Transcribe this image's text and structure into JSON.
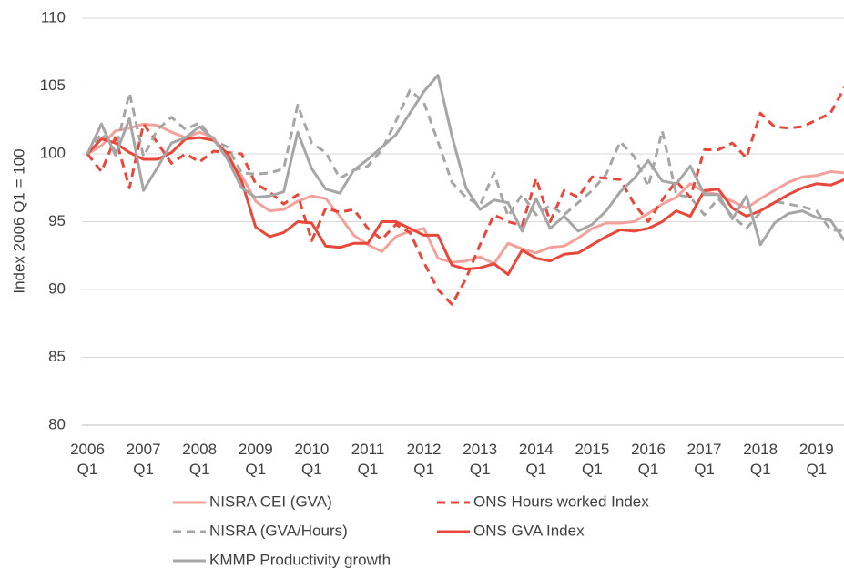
{
  "chart_data": {
    "type": "line",
    "y_label": "Index 2006 Q1 = 100",
    "categories": [
      "2006 Q1",
      null,
      null,
      null,
      "2007 Q1",
      null,
      null,
      null,
      "2008 Q1",
      null,
      null,
      null,
      "2009 Q1",
      null,
      null,
      null,
      "2010 Q1",
      null,
      null,
      null,
      "2011 Q1",
      null,
      null,
      null,
      "2012 Q1",
      null,
      null,
      null,
      "2013 Q1",
      null,
      null,
      null,
      "2014 Q1",
      null,
      null,
      null,
      "2015 Q1",
      null,
      null,
      null,
      "2016 Q1",
      null,
      null,
      null,
      "2017 Q1",
      null,
      null,
      null,
      "2018 Q1",
      null,
      null,
      null,
      "2019 Q1",
      null,
      null
    ],
    "ylim": [
      80,
      110
    ],
    "yticks": [
      80,
      85,
      90,
      95,
      100,
      105,
      110
    ],
    "grid": true,
    "series": [
      {
        "name": "NISRA CEI (GVA)",
        "color": "#f4a19b",
        "style": "solid",
        "values": [
          100,
          100.6,
          101.7,
          101.9,
          102.2,
          102.1,
          101.6,
          101.2,
          101.6,
          101.2,
          99.6,
          98.4,
          96.5,
          95.8,
          95.9,
          96.5,
          96.9,
          96.7,
          95.4,
          94.0,
          93.3,
          92.8,
          93.9,
          94.3,
          94.5,
          92.3,
          92.0,
          92.1,
          92.4,
          91.9,
          93.4,
          93.0,
          92.7,
          93.1,
          93.2,
          93.8,
          94.5,
          94.9,
          94.9,
          95.0,
          95.6,
          96.3,
          96.8,
          97.8,
          97.2,
          97.0,
          96.5,
          96.0,
          96.7,
          97.3,
          97.9,
          98.3,
          98.4,
          98.7,
          98.6
        ]
      },
      {
        "name": "ONS Hours worked Index",
        "color": "#e8473a",
        "style": "dashed",
        "values": [
          100,
          98.7,
          101.2,
          97.5,
          102.2,
          100.8,
          99.3,
          100.0,
          99.4,
          100.2,
          100.1,
          100.0,
          97.8,
          97.2,
          96.3,
          97.0,
          93.6,
          96.0,
          95.7,
          95.9,
          94.5,
          93.7,
          94.8,
          94.2,
          92.0,
          90.0,
          88.9,
          90.8,
          93.3,
          95.5,
          95.0,
          94.7,
          98.2,
          95.0,
          97.3,
          96.8,
          98.3,
          98.2,
          98.1,
          96.3,
          95.0,
          96.6,
          98.0,
          96.8,
          100.3,
          100.3,
          100.8,
          99.7,
          103.0,
          102.0,
          101.9,
          102.0,
          102.5,
          103.0,
          104.9
        ]
      },
      {
        "name": "NISRA (GVA/Hours)",
        "color": "#a6a6a6",
        "style": "dashed",
        "values": [
          100,
          101.5,
          100.2,
          104.5,
          99.8,
          101.8,
          102.7,
          101.8,
          102.3,
          101.0,
          100.5,
          98.6,
          98.5,
          98.6,
          98.9,
          103.6,
          100.8,
          100.1,
          98.2,
          98.8,
          99.1,
          100.3,
          102.4,
          104.7,
          103.8,
          100.9,
          97.9,
          96.8,
          96.2,
          98.6,
          95.4,
          97.0,
          95.5,
          96.2,
          95.5,
          96.4,
          97.3,
          98.5,
          100.9,
          99.8,
          97.6,
          101.7,
          97.0,
          96.8,
          95.5,
          96.7,
          95.4,
          94.5,
          95.7,
          96.5,
          96.3,
          96.1,
          95.8,
          94.4,
          94.3
        ]
      },
      {
        "name": "ONS GVA Index",
        "color": "#e8473a",
        "style": "solid",
        "values": [
          100,
          101.1,
          100.8,
          100.1,
          99.6,
          99.6,
          100.1,
          101.1,
          101.2,
          101.0,
          100.0,
          98.0,
          94.6,
          93.9,
          94.2,
          95.0,
          94.9,
          93.2,
          93.1,
          93.4,
          93.4,
          95.0,
          95.0,
          94.5,
          94.0,
          94.0,
          91.8,
          91.5,
          91.6,
          91.9,
          91.1,
          92.9,
          92.3,
          92.1,
          92.6,
          92.7,
          93.3,
          93.9,
          94.4,
          94.3,
          94.5,
          95.0,
          95.8,
          95.4,
          97.3,
          97.4,
          96.0,
          95.4,
          95.8,
          96.4,
          97.0,
          97.5,
          97.8,
          97.7,
          98.1
        ]
      },
      {
        "name": "KMMP Productivity growth",
        "color": "#a6a6a6",
        "style": "solid",
        "values": [
          100,
          102.2,
          99.9,
          102.6,
          97.3,
          99.0,
          100.8,
          101.2,
          102.0,
          101.1,
          99.6,
          97.5,
          96.8,
          96.9,
          97.2,
          101.6,
          98.9,
          97.4,
          97.1,
          98.8,
          99.6,
          100.5,
          101.4,
          103.0,
          104.6,
          105.8,
          101.3,
          97.5,
          95.9,
          96.6,
          96.4,
          94.3,
          96.7,
          94.5,
          95.4,
          94.3,
          94.8,
          95.8,
          97.2,
          98.2,
          99.5,
          98.0,
          97.8,
          99.1,
          97.0,
          97.0,
          95.2,
          96.9,
          93.3,
          94.9,
          95.6,
          95.8,
          95.3,
          95.1,
          93.6
        ]
      }
    ]
  }
}
